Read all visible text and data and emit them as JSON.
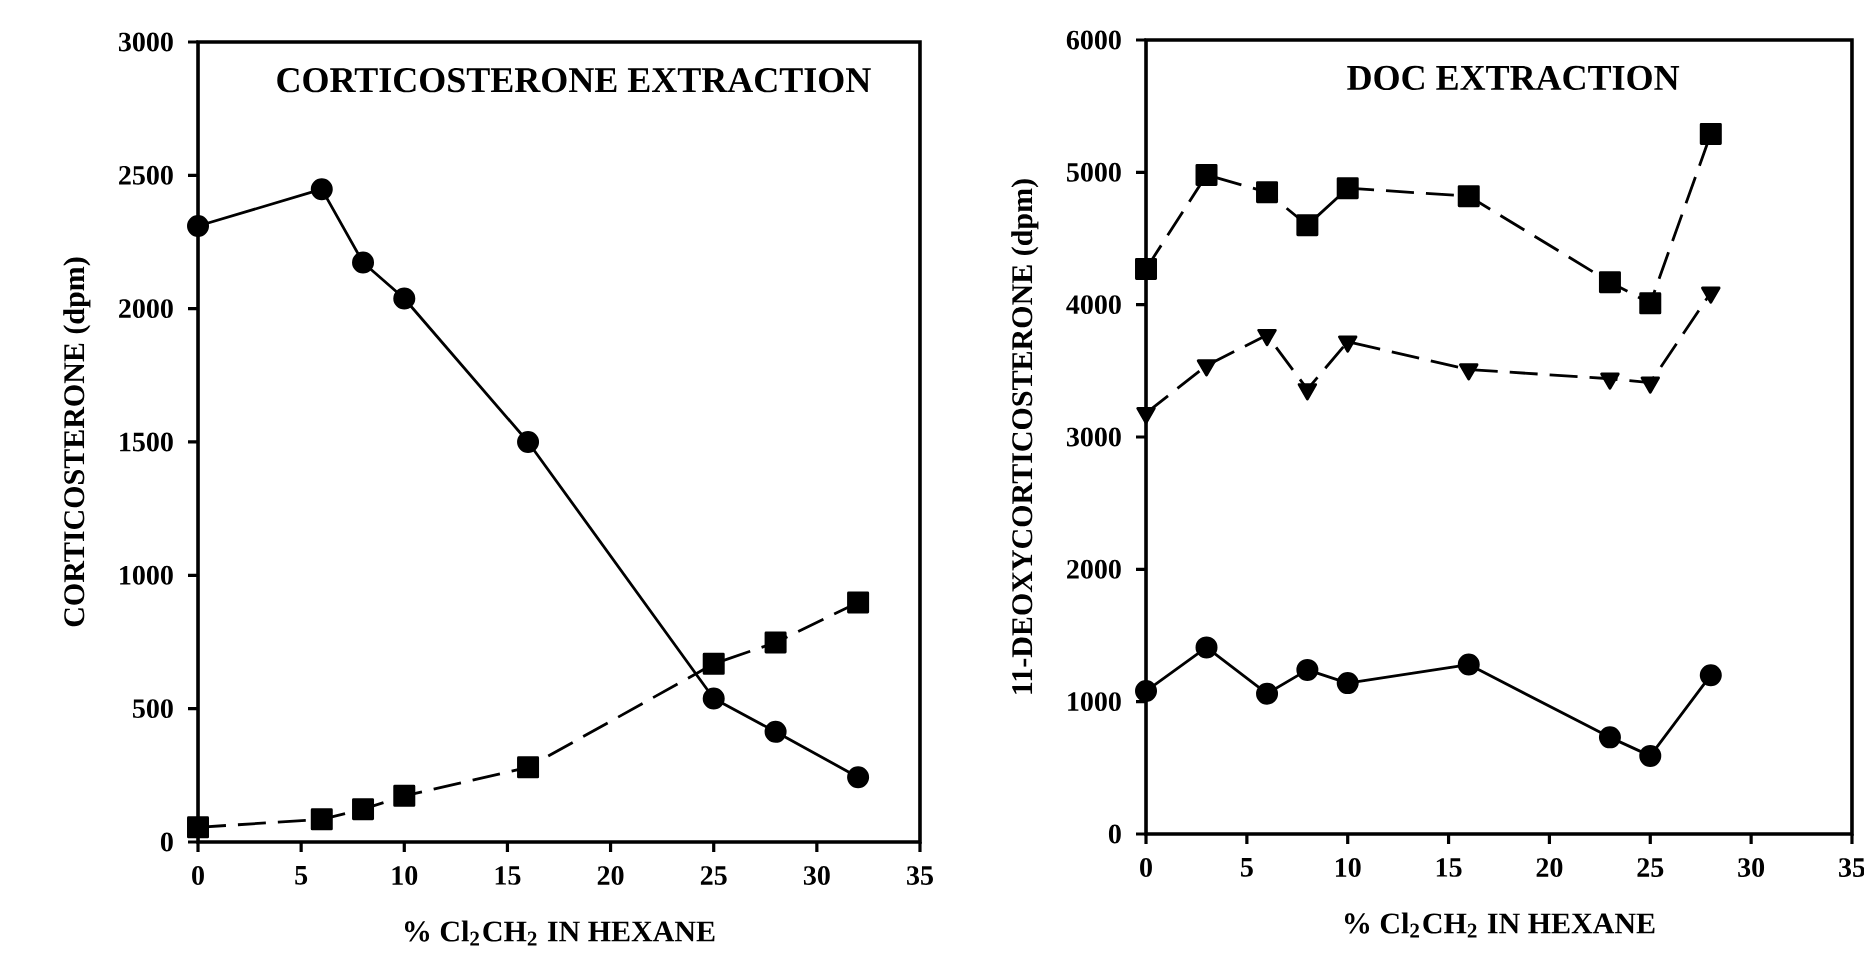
{
  "chart_data": [
    {
      "type": "line",
      "title": "CORTICOSTERONE EXTRACTION",
      "xlabel": "% Cl$_{2}$CH$_{2}$ IN HEXANE",
      "ylabel": "CORTICOSTERONE (dpm)",
      "xlim": [
        0,
        35
      ],
      "ylim": [
        0,
        3000
      ],
      "xticks": [
        0,
        5,
        10,
        15,
        20,
        25,
        30,
        35
      ],
      "yticks": [
        0,
        500,
        1000,
        1500,
        2000,
        2500,
        3000
      ],
      "grid": false,
      "series": [
        {
          "color": "#000000",
          "marker": "circle",
          "line_style": "solid",
          "x": [
            0,
            6,
            8,
            10,
            16,
            25,
            28,
            32
          ],
          "values": [
            2310,
            2448,
            2173,
            2038,
            1500,
            538,
            413,
            243
          ]
        },
        {
          "color": "#000000",
          "marker": "square",
          "line_style": "dashed",
          "x": [
            0,
            6,
            8,
            10,
            16,
            25,
            28,
            32
          ],
          "values": [
            55,
            85,
            123,
            173,
            280,
            668,
            748,
            898
          ]
        }
      ]
    },
    {
      "type": "line",
      "title": "DOC EXTRACTION",
      "xlabel": "% Cl$_{2}$CH$_{2}$ IN HEXANE",
      "ylabel": "11-DEOXYCORTICOSTERONE (dpm)",
      "xlim": [
        0,
        35
      ],
      "ylim": [
        0,
        6000
      ],
      "xticks": [
        0,
        5,
        10,
        15,
        20,
        25,
        30,
        35
      ],
      "yticks": [
        0,
        1000,
        2000,
        3000,
        4000,
        5000,
        6000
      ],
      "grid": false,
      "series": [
        {
          "color": "#000000",
          "marker": "square",
          "line_style": "dashed",
          "x": [
            0,
            3,
            6,
            8,
            10,
            16,
            23,
            25,
            28
          ],
          "values": [
            4270,
            4980,
            4850,
            4600,
            4880,
            4820,
            4170,
            4010,
            5290
          ]
        },
        {
          "color": "#000000",
          "marker": "triangle",
          "line_style": "dashed",
          "x": [
            0,
            3,
            6,
            8,
            10,
            16,
            23,
            25,
            28
          ],
          "values": [
            3180,
            3540,
            3770,
            3360,
            3720,
            3510,
            3440,
            3410,
            4090
          ]
        },
        {
          "color": "#000000",
          "marker": "circle",
          "line_style": "solid",
          "x": [
            0,
            3,
            6,
            8,
            10,
            16,
            23,
            25,
            28
          ],
          "values": [
            1080,
            1410,
            1060,
            1240,
            1140,
            1280,
            730,
            590,
            1200
          ]
        }
      ]
    }
  ]
}
